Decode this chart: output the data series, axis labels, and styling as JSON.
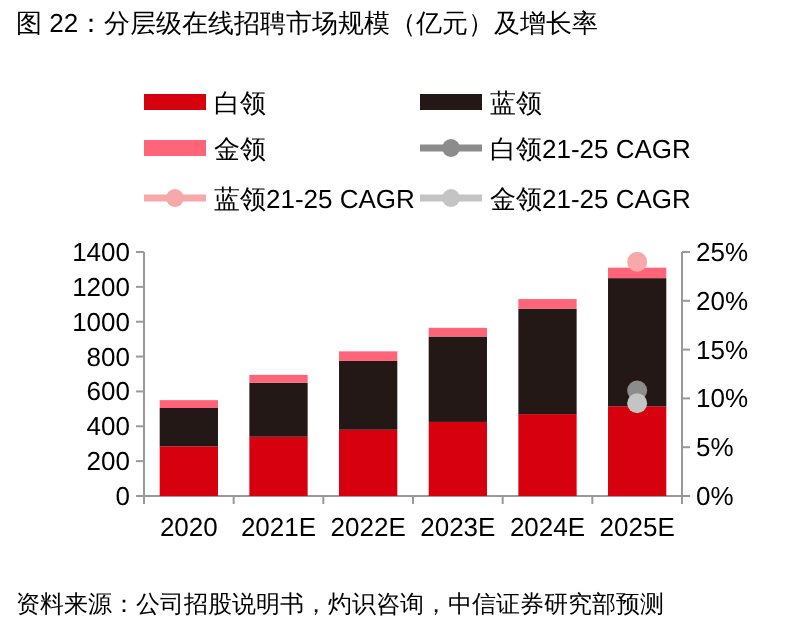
{
  "chart_data": {
    "type": "bar",
    "stacked": true,
    "title": "图 22：分层级在线招聘市场规模（亿元）及增长率",
    "categories": [
      "2020",
      "2021E",
      "2022E",
      "2023E",
      "2024E",
      "2025E"
    ],
    "series": [
      {
        "name": "白领",
        "color": "#d7000f",
        "values": [
          285,
          340,
          380,
          425,
          470,
          515
        ]
      },
      {
        "name": "蓝领",
        "color": "#231815",
        "values": [
          220,
          310,
          395,
          490,
          605,
          735
        ]
      },
      {
        "name": "金领",
        "color": "#ff6478",
        "values": [
          45,
          45,
          55,
          50,
          55,
          60
        ]
      },
      {
        "name": "白领21-25 CAGR",
        "type": "line",
        "axis": "y2",
        "color": "#8c8c8c",
        "values": [
          null,
          null,
          null,
          null,
          null,
          10.8
        ]
      },
      {
        "name": "蓝领21-25 CAGR",
        "type": "line",
        "axis": "y2",
        "color": "#f7a8a8",
        "values": [
          null,
          null,
          null,
          null,
          null,
          24.0
        ]
      },
      {
        "name": "金领21-25 CAGR",
        "type": "line",
        "axis": "y2",
        "color": "#c4c4c4",
        "values": [
          null,
          null,
          null,
          null,
          null,
          9.5
        ]
      }
    ],
    "marker": "circle",
    "ylim": [
      0,
      1400
    ],
    "yticks": [
      0,
      200,
      400,
      600,
      800,
      1000,
      1200,
      1400
    ],
    "y2lim": [
      0,
      25
    ],
    "y2ticks": [
      {
        "value": 0,
        "label": "0%"
      },
      {
        "value": 5,
        "label": "5%"
      },
      {
        "value": 10,
        "label": "10%"
      },
      {
        "value": 15,
        "label": "15%"
      },
      {
        "value": 20,
        "label": "20%"
      },
      {
        "value": 25,
        "label": "25%"
      }
    ],
    "legend": "top",
    "annotations": [
      "资料来源：公司招股说明书，灼识咨询，中信证券研究部预测"
    ]
  }
}
